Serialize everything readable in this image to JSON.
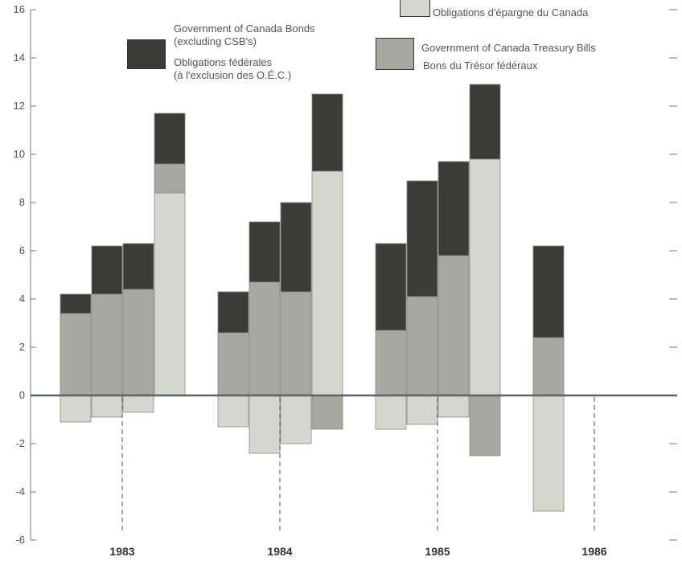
{
  "colors": {
    "bonds": "#3b3b37",
    "csb": "#d5d6ce",
    "tbills": "#a7a8a0",
    "axis": "#4d6b63"
  },
  "legend": {
    "csb_label": "Obligations d'épargne du Canada",
    "bonds_label_en": "Government of Canada Bonds\n(excluding CSB's)",
    "bonds_label_fr": "Obligations fédérales\n(à l'exclusion des O.É.C.)",
    "tbills_label_en": "Government of Canada Treasury Bills",
    "tbills_label_fr": "Bons du Trésor fédéraux"
  },
  "chart_data": {
    "type": "bar",
    "stacked": true,
    "ylim": [
      -6,
      16
    ],
    "yticks": [
      -6,
      -4,
      -2,
      0,
      2,
      4,
      6,
      8,
      10,
      12,
      14,
      16
    ],
    "years": [
      "1983",
      "1984",
      "1985",
      "1986"
    ],
    "series": [
      {
        "key": "csb",
        "name": "Obligations d'épargne du Canada",
        "color": "#d5d6ce"
      },
      {
        "key": "tbills",
        "name": "Government of Canada Treasury Bills / Bons du Trésor fédéraux",
        "color": "#a7a8a0"
      },
      {
        "key": "bonds",
        "name": "Government of Canada Bonds (excluding CSB's) / Obligations fédérales (à l'exclusion des O.É.C.)",
        "color": "#3b3b37"
      }
    ],
    "bars": [
      {
        "period": "1983 Q1",
        "csb": -1.1,
        "tbills": 3.4,
        "bonds": 0.8
      },
      {
        "period": "1983 Q2",
        "csb": -0.9,
        "tbills": 4.2,
        "bonds": 2.0
      },
      {
        "period": "1983 Q3",
        "csb": -0.7,
        "tbills": 4.4,
        "bonds": 1.9
      },
      {
        "period": "1983 Q4",
        "csb": 8.4,
        "tbills": 1.2,
        "bonds": 2.1
      },
      {
        "period": "1984 Q1",
        "csb": -1.3,
        "tbills": 2.6,
        "bonds": 1.7
      },
      {
        "period": "1984 Q2",
        "csb": -2.4,
        "tbills": 4.7,
        "bonds": 2.5
      },
      {
        "period": "1984 Q3",
        "csb": -2.0,
        "tbills": 4.3,
        "bonds": 3.7
      },
      {
        "period": "1984 Q4",
        "csb": 9.3,
        "tbills": -1.4,
        "bonds": 3.2
      },
      {
        "period": "1985 Q1",
        "csb": -1.4,
        "tbills": 2.7,
        "bonds": 3.6
      },
      {
        "period": "1985 Q2",
        "csb": -1.2,
        "tbills": 4.1,
        "bonds": 4.8
      },
      {
        "period": "1985 Q3",
        "csb": -0.9,
        "tbills": 5.8,
        "bonds": 3.9
      },
      {
        "period": "1985 Q4",
        "csb": 9.8,
        "tbills": -2.5,
        "bonds": 3.1
      },
      {
        "period": "1986 Q1",
        "csb": -4.8,
        "tbills": 2.4,
        "bonds": 3.8
      }
    ]
  }
}
